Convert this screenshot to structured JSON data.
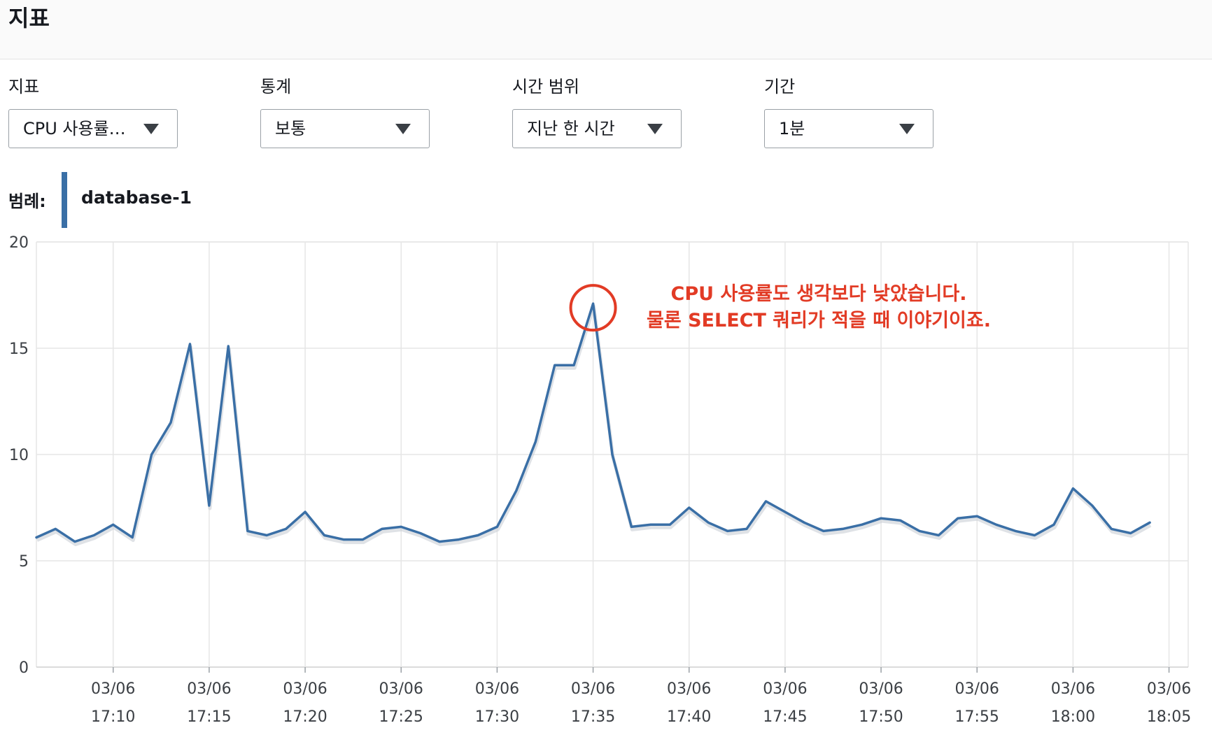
{
  "header": {
    "title": "지표"
  },
  "controls": {
    "metric": {
      "label": "지표",
      "value": "CPU 사용률…"
    },
    "statistic": {
      "label": "통계",
      "value": "보통"
    },
    "time_range": {
      "label": "시간 범위",
      "value": "지난 한 시간"
    },
    "period": {
      "label": "기간",
      "value": "1분"
    }
  },
  "legend": {
    "title": "범례:",
    "series": "database-1"
  },
  "colors": {
    "series": "#3a6fa6",
    "annotation": "#e23b25",
    "grid": "#e6e6e6"
  },
  "annotation": {
    "line1": "CPU 사용률도 생각보다 낮았습니다.",
    "line2": "물론 SELECT 쿼리가 적을 때 이야기이죠."
  },
  "chart_data": {
    "type": "line",
    "series_name": "database-1",
    "ylim": [
      0,
      20
    ],
    "yticks": [
      0,
      5,
      10,
      15,
      20
    ],
    "x_ticks": [
      {
        "date": "03/06",
        "time": "17:10"
      },
      {
        "date": "03/06",
        "time": "17:15"
      },
      {
        "date": "03/06",
        "time": "17:20"
      },
      {
        "date": "03/06",
        "time": "17:25"
      },
      {
        "date": "03/06",
        "time": "17:30"
      },
      {
        "date": "03/06",
        "time": "17:35"
      },
      {
        "date": "03/06",
        "time": "17:40"
      },
      {
        "date": "03/06",
        "time": "17:45"
      },
      {
        "date": "03/06",
        "time": "17:50"
      },
      {
        "date": "03/06",
        "time": "17:55"
      },
      {
        "date": "03/06",
        "time": "18:00"
      },
      {
        "date": "03/06",
        "time": "18:05"
      }
    ],
    "x_range": [
      "17:06",
      "18:06"
    ],
    "grid": true,
    "highlight_point": "17:35",
    "points": [
      [
        "17:06",
        6.1
      ],
      [
        "17:07",
        6.5
      ],
      [
        "17:08",
        5.9
      ],
      [
        "17:09",
        6.2
      ],
      [
        "17:10",
        6.7
      ],
      [
        "17:11",
        6.1
      ],
      [
        "17:12",
        10.0
      ],
      [
        "17:13",
        11.5
      ],
      [
        "17:14",
        15.2
      ],
      [
        "17:15",
        7.6
      ],
      [
        "17:16",
        15.1
      ],
      [
        "17:17",
        6.4
      ],
      [
        "17:18",
        6.2
      ],
      [
        "17:19",
        6.5
      ],
      [
        "17:20",
        7.3
      ],
      [
        "17:21",
        6.2
      ],
      [
        "17:22",
        6.0
      ],
      [
        "17:23",
        6.0
      ],
      [
        "17:24",
        6.5
      ],
      [
        "17:25",
        6.6
      ],
      [
        "17:26",
        6.3
      ],
      [
        "17:27",
        5.9
      ],
      [
        "17:28",
        6.0
      ],
      [
        "17:29",
        6.2
      ],
      [
        "17:30",
        6.6
      ],
      [
        "17:31",
        8.3
      ],
      [
        "17:32",
        10.6
      ],
      [
        "17:33",
        14.2
      ],
      [
        "17:34",
        14.2
      ],
      [
        "17:35",
        17.1
      ],
      [
        "17:36",
        10.0
      ],
      [
        "17:37",
        6.6
      ],
      [
        "17:38",
        6.7
      ],
      [
        "17:39",
        6.7
      ],
      [
        "17:40",
        7.5
      ],
      [
        "17:41",
        6.8
      ],
      [
        "17:42",
        6.4
      ],
      [
        "17:43",
        6.5
      ],
      [
        "17:44",
        7.8
      ],
      [
        "17:45",
        7.3
      ],
      [
        "17:46",
        6.8
      ],
      [
        "17:47",
        6.4
      ],
      [
        "17:48",
        6.5
      ],
      [
        "17:49",
        6.7
      ],
      [
        "17:50",
        7.0
      ],
      [
        "17:51",
        6.9
      ],
      [
        "17:52",
        6.4
      ],
      [
        "17:53",
        6.2
      ],
      [
        "17:54",
        7.0
      ],
      [
        "17:55",
        7.1
      ],
      [
        "17:56",
        6.7
      ],
      [
        "17:57",
        6.4
      ],
      [
        "17:58",
        6.2
      ],
      [
        "17:59",
        6.7
      ],
      [
        "18:00",
        8.4
      ],
      [
        "18:01",
        7.6
      ],
      [
        "18:02",
        6.5
      ],
      [
        "18:03",
        6.3
      ],
      [
        "18:04",
        6.8
      ]
    ]
  }
}
